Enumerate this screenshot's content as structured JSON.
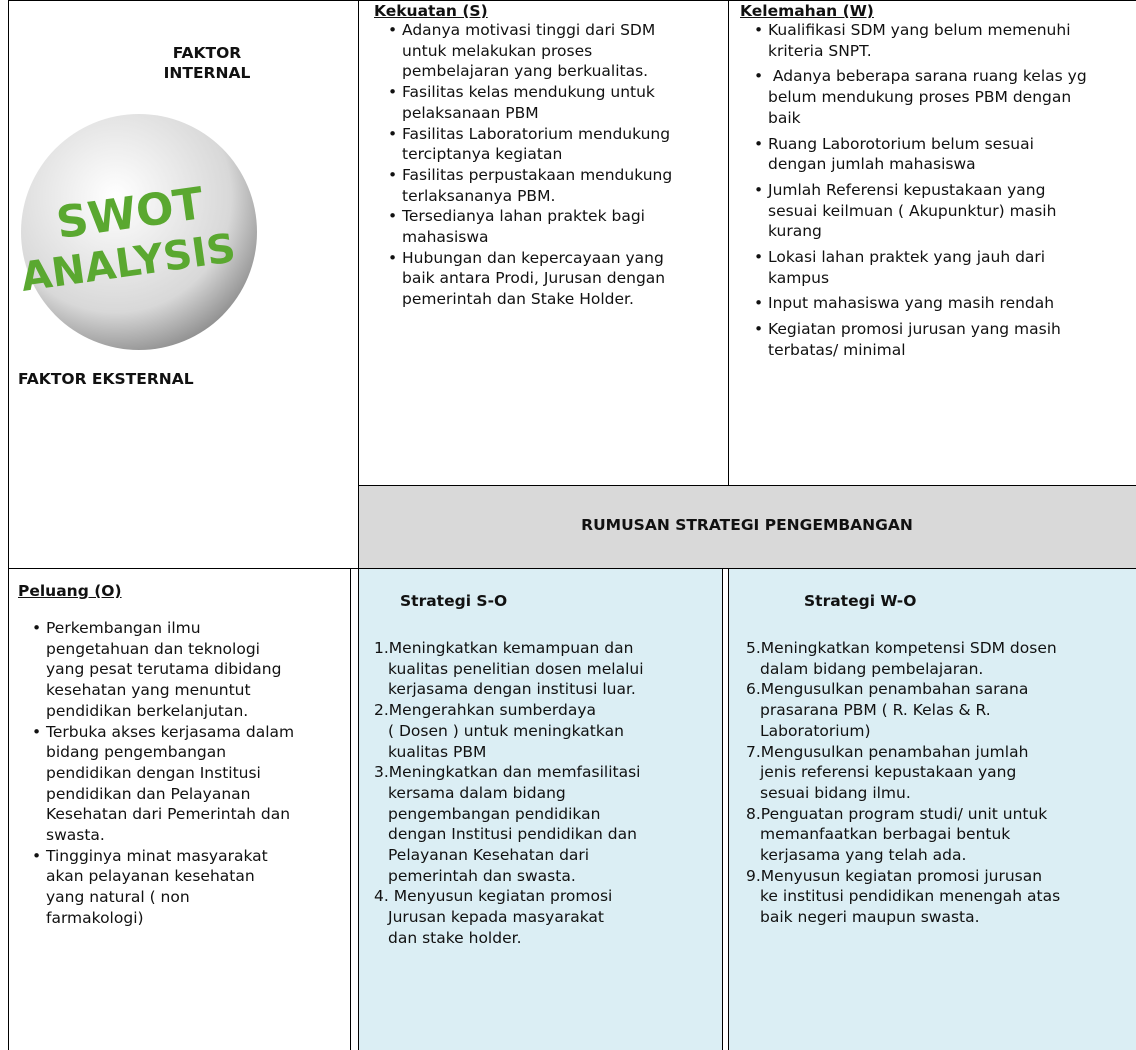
{
  "internal_header": {
    "line1": "FAKTOR",
    "line2": "INTERNAL",
    "image_words": [
      "SWOT",
      "ANALYSIS"
    ]
  },
  "external_header": "FAKTOR EKSTERNAL",
  "strengths": {
    "title": "Kekuatan (S)",
    "items": [
      [
        "Adanya motivasi tinggi dari SDM",
        "untuk melakukan proses",
        "pembelajaran yang berkualitas."
      ],
      [
        "Fasilitas kelas mendukung untuk",
        "pelaksanaan PBM"
      ],
      [
        "Fasilitas Laboratorium mendukung",
        "terciptanya kegiatan"
      ],
      [
        "Fasilitas perpustakaan mendukung",
        "terlaksananya PBM."
      ],
      [
        "Tersedianya lahan praktek bagi",
        "mahasiswa"
      ],
      [
        "Hubungan dan kepercayaan yang",
        "baik antara Prodi, Jurusan  dengan",
        "pemerintah dan Stake Holder."
      ]
    ]
  },
  "weaknesses": {
    "title": "Kelemahan (W)",
    "items": [
      [
        "Kualifikasi SDM yang belum  memenuhi",
        "kriteria SNPT."
      ],
      [
        " Adanya beberapa sarana ruang kelas yg",
        "belum mendukung proses PBM dengan",
        "baik"
      ],
      [
        "Ruang Laborotorium belum sesuai",
        "dengan jumlah mahasiswa"
      ],
      [
        "Jumlah Referensi kepustakaan yang",
        "sesuai keilmuan ( Akupunktur) masih",
        "kurang"
      ],
      [
        "Lokasi lahan praktek yang jauh dari",
        "kampus"
      ],
      [
        "Input mahasiswa yang masih rendah"
      ],
      [
        "Kegiatan promosi jurusan yang masih",
        "terbatas/ minimal"
      ]
    ]
  },
  "strategy_header": "RUMUSAN STRATEGI PENGEMBANGAN",
  "opportunities": {
    "title": "Peluang (O)",
    "items": [
      [
        "Perkembangan ilmu",
        "pengetahuan dan teknologi",
        "yang pesat terutama dibidang",
        "kesehatan yang  menuntut",
        "pendidikan  berkelanjutan."
      ],
      [
        "Terbuka akses kerjasama dalam",
        "bidang pengembangan",
        "pendidikan dengan Institusi",
        "pendidikan dan Pelayanan",
        "Kesehatan dari Pemerintah dan",
        "swasta."
      ],
      [
        "Tingginya minat masyarakat",
        "akan pelayanan kesehatan",
        "yang natural ( non",
        "farmakologi)"
      ]
    ]
  },
  "so_strategy": {
    "title": "Strategi S-O",
    "items": [
      [
        "1.Meningkatkan kemampuan dan",
        "kualitas penelitian dosen melalui",
        "kerjasama dengan institusi luar."
      ],
      [
        "2.Mengerahkan sumberdaya",
        "( Dosen ) untuk meningkatkan",
        "kualitas PBM"
      ],
      [
        "3.Meningkatkan dan memfasilitasi",
        "kersama dalam bidang",
        "pengembangan pendidikan",
        "dengan Institusi pendidikan dan",
        "Pelayanan Kesehatan dari",
        "pemerintah dan swasta."
      ],
      [
        "4. Menyusun kegiatan promosi",
        "Jurusan kepada masyarakat",
        "dan stake holder."
      ]
    ]
  },
  "wo_strategy": {
    "title": "Strategi W-O",
    "items": [
      [
        "5.Meningkatkan kompetensi SDM dosen",
        "dalam bidang pembelajaran."
      ],
      [
        "6.Mengusulkan penambahan sarana",
        "prasarana PBM ( R. Kelas & R.",
        "Laboratorium)"
      ],
      [
        "7.Mengusulkan penambahan jumlah",
        "jenis referensi kepustakaan yang",
        "sesuai bidang ilmu."
      ],
      [
        "8.Penguatan program studi/ unit untuk",
        "memanfaatkan berbagai bentuk",
        "kerjasama yang telah ada."
      ],
      [
        "9.Menyusun kegiatan promosi jurusan",
        "ke institusi pendidikan menengah atas",
        "baik negeri maupun swasta."
      ]
    ]
  }
}
